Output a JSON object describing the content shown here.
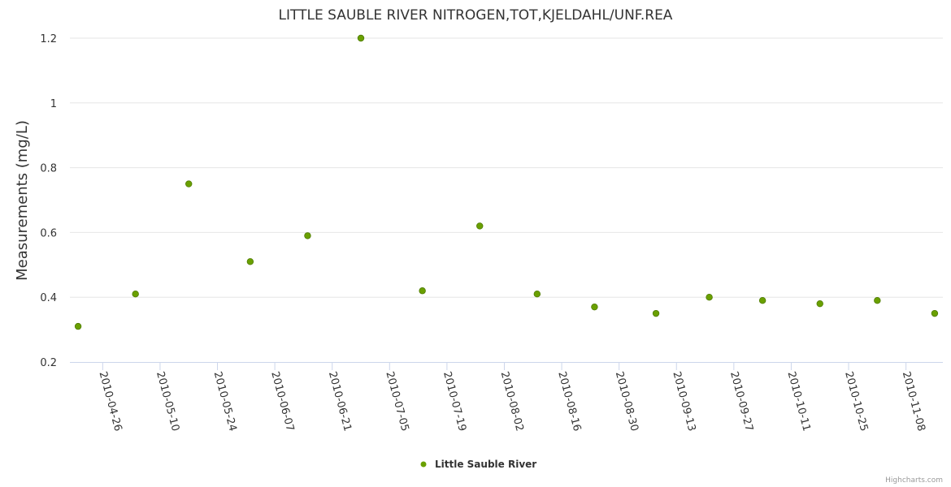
{
  "chart_data": {
    "type": "scatter",
    "title": "LITTLE SAUBLE RIVER NITROGEN,TOT,KJELDAHL/UNF.REA",
    "xlabel": "",
    "ylabel": "Measurements (mg/L)",
    "ylim": [
      0.2,
      1.2
    ],
    "yticks": [
      "0.2",
      "0.4",
      "0.6",
      "0.8",
      "1",
      "1.2"
    ],
    "xlim": [
      "2010-04-18",
      "2010-11-17"
    ],
    "xticks": [
      "2010-04-26",
      "2010-05-10",
      "2010-05-24",
      "2010-06-07",
      "2010-06-21",
      "2010-07-05",
      "2010-07-19",
      "2010-08-02",
      "2010-08-16",
      "2010-08-30",
      "2010-09-13",
      "2010-09-27",
      "2010-10-11",
      "2010-10-25",
      "2010-11-08"
    ],
    "grid": true,
    "legend_position": "bottom-center",
    "series": [
      {
        "name": "Little Sauble River",
        "color": "#6aa000",
        "x": [
          "2010-04-20",
          "2010-05-04",
          "2010-05-17",
          "2010-06-01",
          "2010-06-15",
          "2010-06-28",
          "2010-07-13",
          "2010-07-27",
          "2010-08-10",
          "2010-08-24",
          "2010-09-08",
          "2010-09-21",
          "2010-10-04",
          "2010-10-18",
          "2010-11-01",
          "2010-11-15"
        ],
        "values": [
          0.31,
          0.41,
          0.75,
          0.51,
          0.59,
          1.2,
          0.42,
          0.62,
          0.41,
          0.37,
          0.35,
          0.4,
          0.39,
          0.38,
          0.39,
          0.35
        ]
      }
    ]
  },
  "credits": "Highcharts.com"
}
